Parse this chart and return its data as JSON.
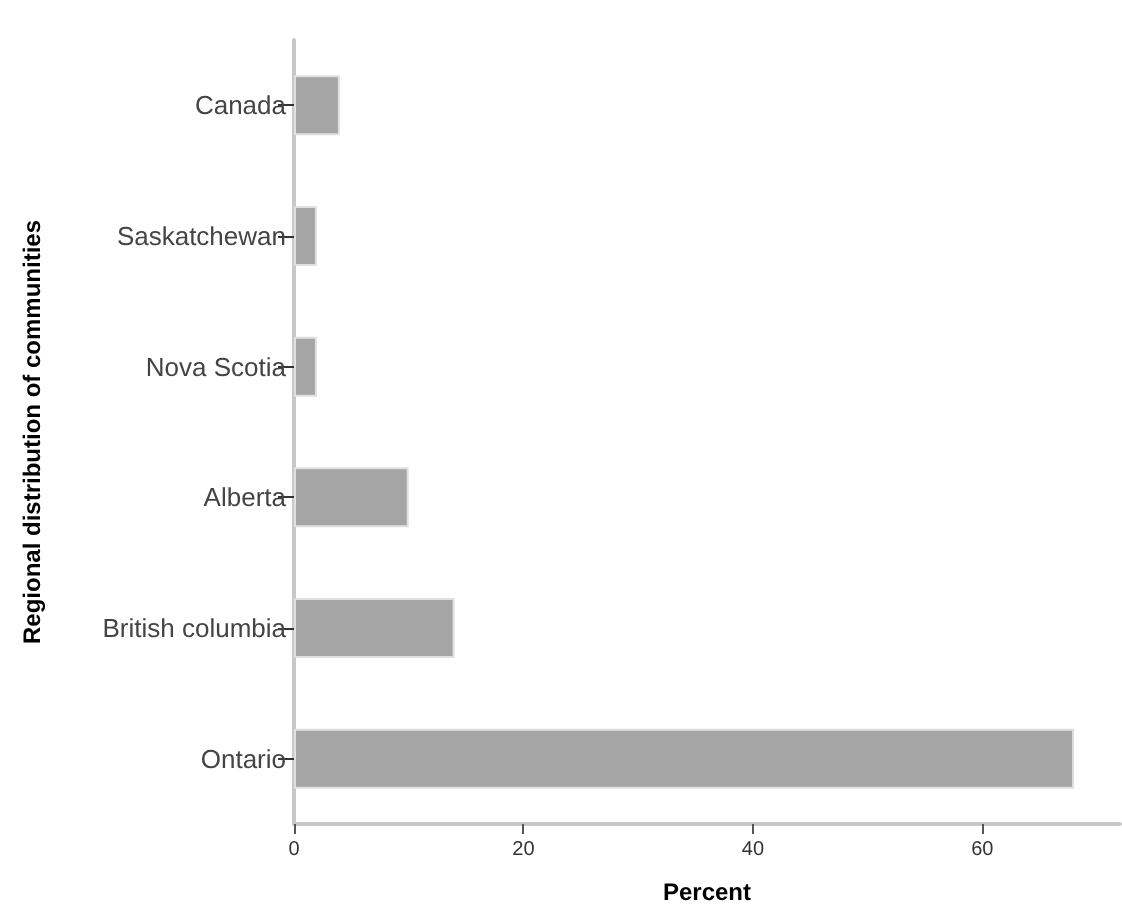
{
  "chart_data": {
    "type": "bar",
    "orientation": "horizontal",
    "xlabel": "Percent",
    "ylabel": "Regional distribution of communities",
    "categories": [
      "Canada",
      "Saskatchewan",
      "Nova Scotia",
      "Alberta",
      "British columbia",
      "Ontario"
    ],
    "values": [
      4,
      2,
      2,
      10,
      14,
      68
    ],
    "color": "#a5a5a5",
    "xlim": [
      0,
      72
    ],
    "xticks": [
      0,
      20,
      40,
      60
    ],
    "grid": false
  }
}
